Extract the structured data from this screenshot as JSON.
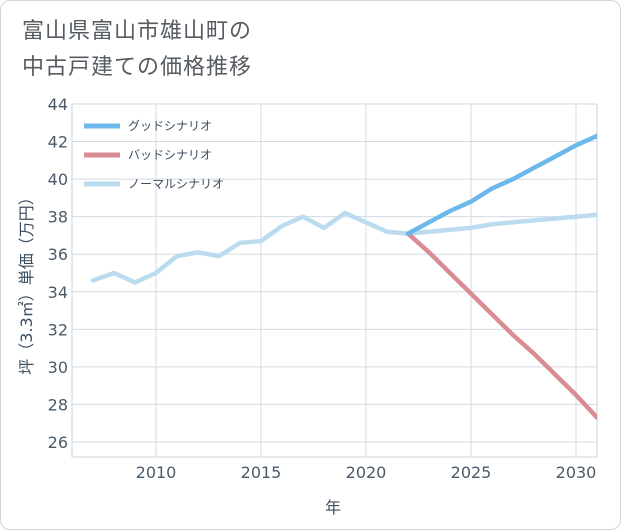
{
  "chart_data": {
    "type": "line",
    "title": [
      "富山県富山市雄山町の",
      "中古戸建ての価格推移"
    ],
    "xlabel": "年",
    "ylabel": "坪（3.3㎡）単価（万円）",
    "xlim": [
      2006,
      2031
    ],
    "ylim": [
      25.2,
      44
    ],
    "x_ticks": [
      2010,
      2015,
      2020,
      2025,
      2030
    ],
    "y_ticks": [
      26,
      28,
      30,
      32,
      34,
      36,
      38,
      40,
      42,
      44
    ],
    "grid": true,
    "legend_position": "top-left",
    "series": [
      {
        "name": "グッドシナリオ",
        "color": "#6cb8ea",
        "points": [
          [
            2022,
            37.1
          ],
          [
            2023,
            37.7
          ],
          [
            2024,
            38.3
          ],
          [
            2025,
            38.8
          ],
          [
            2026,
            39.5
          ],
          [
            2027,
            40.0
          ],
          [
            2028,
            40.6
          ],
          [
            2029,
            41.2
          ],
          [
            2030,
            41.8
          ],
          [
            2031,
            42.3
          ]
        ]
      },
      {
        "name": "バッドシナリオ",
        "color": "#d98c93",
        "points": [
          [
            2022,
            37.1
          ],
          [
            2023,
            36.1
          ],
          [
            2024,
            35.0
          ],
          [
            2025,
            33.9
          ],
          [
            2026,
            32.8
          ],
          [
            2027,
            31.7
          ],
          [
            2028,
            30.7
          ],
          [
            2029,
            29.6
          ],
          [
            2030,
            28.5
          ],
          [
            2031,
            27.3
          ]
        ]
      },
      {
        "name": "ノーマルシナリオ",
        "color": "#badcee",
        "points": [
          [
            2007,
            34.6
          ],
          [
            2008,
            35.0
          ],
          [
            2009,
            34.5
          ],
          [
            2010,
            35.0
          ],
          [
            2011,
            35.9
          ],
          [
            2012,
            36.1
          ],
          [
            2013,
            35.9
          ],
          [
            2014,
            36.6
          ],
          [
            2015,
            36.7
          ],
          [
            2016,
            37.5
          ],
          [
            2017,
            38.0
          ],
          [
            2018,
            37.4
          ],
          [
            2019,
            38.2
          ],
          [
            2020,
            37.7
          ],
          [
            2021,
            37.2
          ],
          [
            2022,
            37.1
          ],
          [
            2023,
            37.2
          ],
          [
            2024,
            37.3
          ],
          [
            2025,
            37.4
          ],
          [
            2026,
            37.6
          ],
          [
            2027,
            37.7
          ],
          [
            2028,
            37.8
          ],
          [
            2029,
            37.9
          ],
          [
            2030,
            38.0
          ],
          [
            2031,
            38.1
          ]
        ]
      }
    ]
  }
}
